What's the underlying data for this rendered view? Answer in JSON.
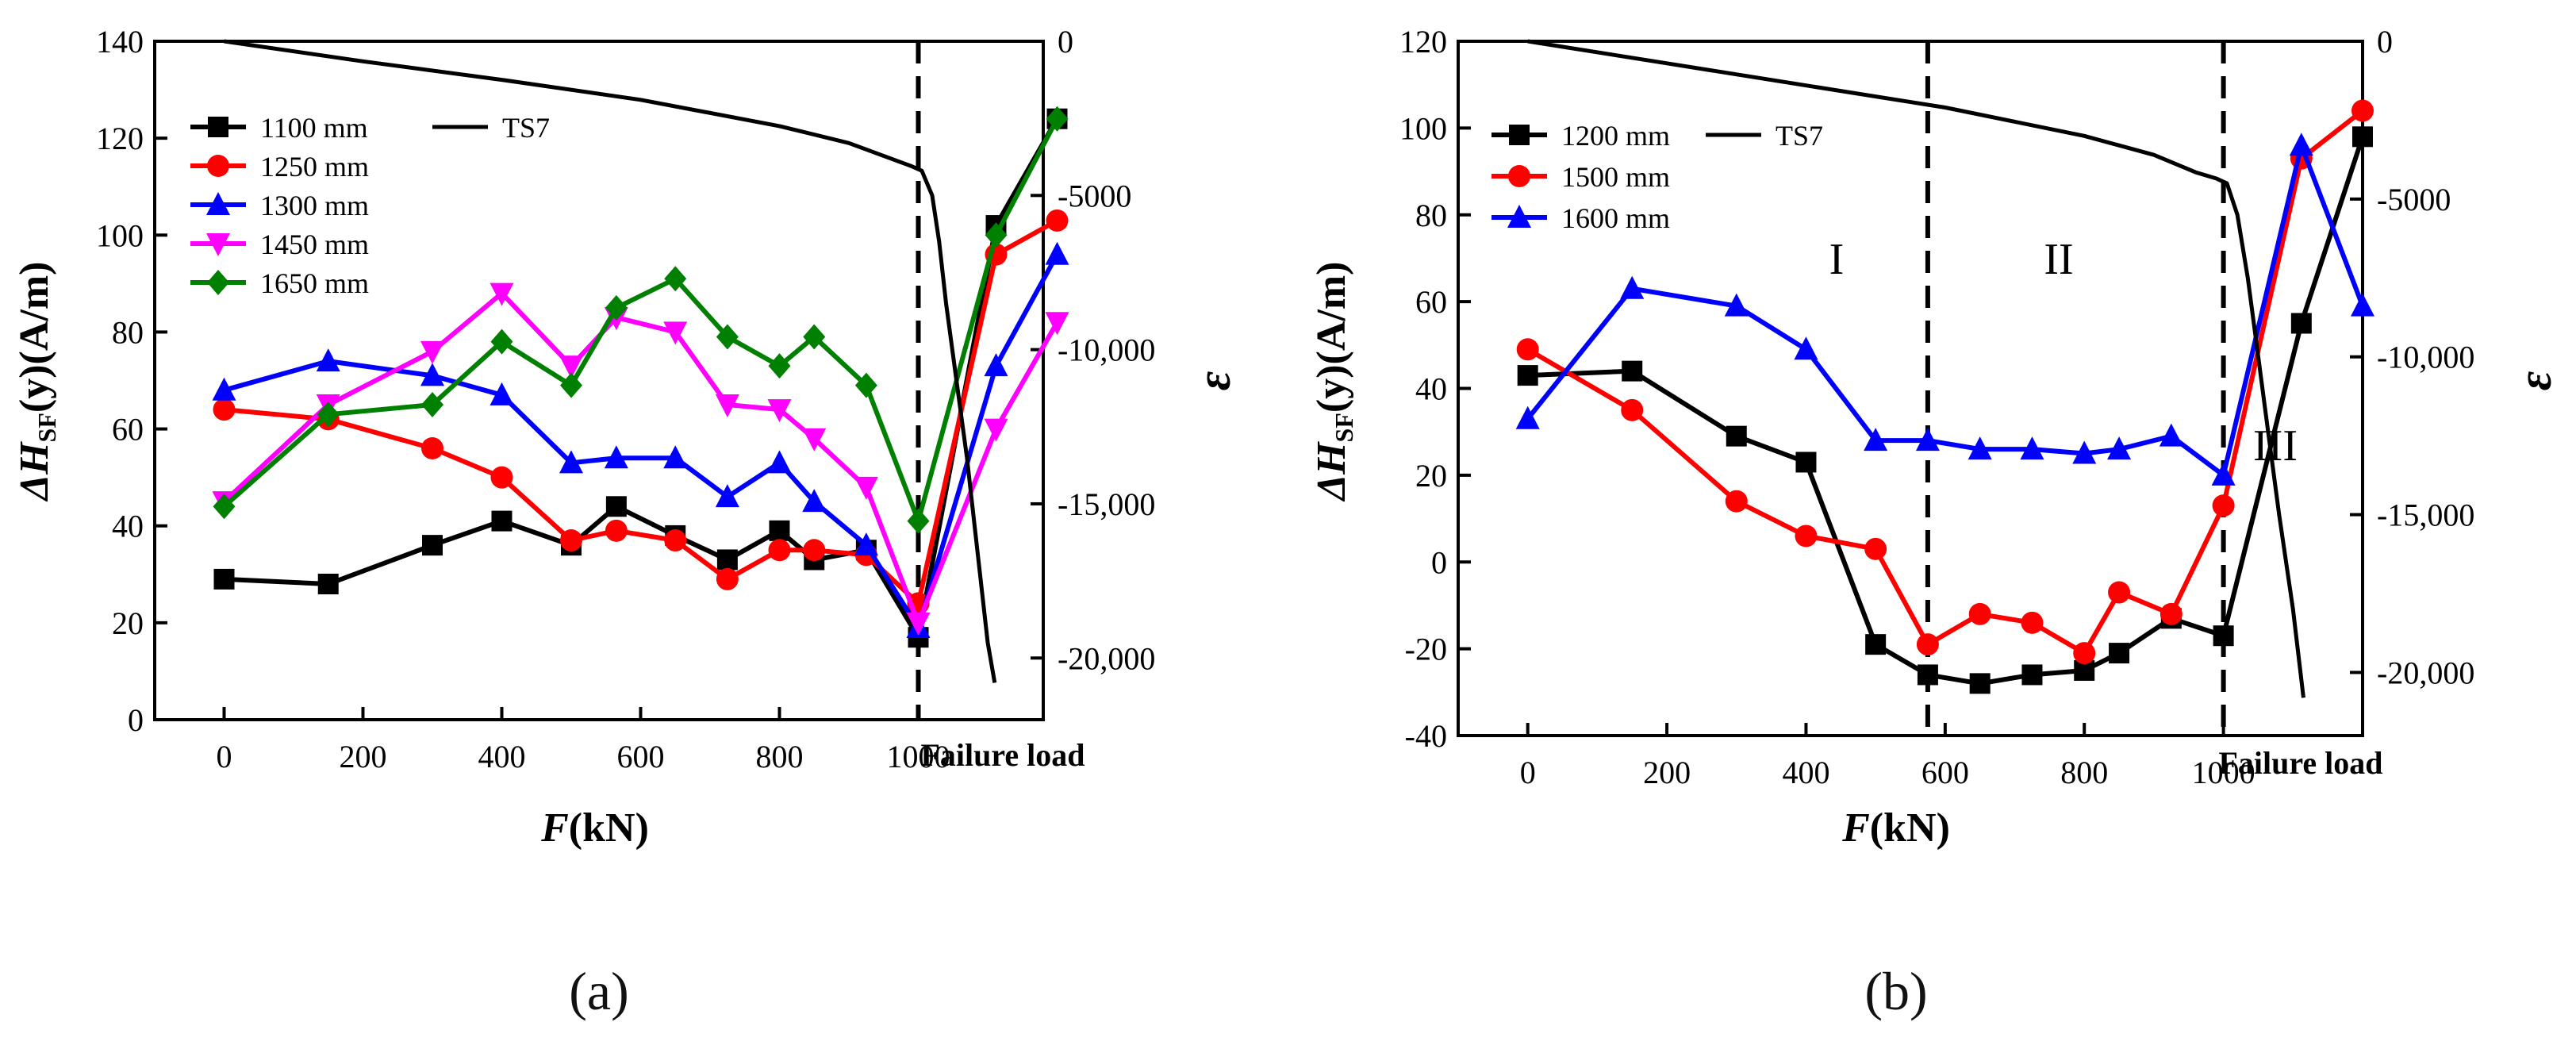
{
  "panel_a": {
    "label": "(a)",
    "y_left_label": "ΔH",
    "y_left_sub": "SF",
    "y_left_tail": "(y)(A/m)",
    "y_right_label": "ε",
    "x_label_italic": "F",
    "x_label_rest": "(kN)",
    "x_special_label": "Failure load",
    "left_ticks": [
      "0",
      "20",
      "40",
      "60",
      "80",
      "100",
      "120",
      "140"
    ],
    "right_ticks": [
      "0",
      "-5000",
      "-10,000",
      "-15,000",
      "-20,000"
    ],
    "x_ticks": [
      "0",
      "200",
      "400",
      "600",
      "800",
      "1000"
    ],
    "legend_left": [
      "1100 mm",
      "1250 mm",
      "1300 mm",
      "1450 mm",
      "1650 mm"
    ],
    "legend_right": [
      "TS7"
    ]
  },
  "panel_b": {
    "label": "(b)",
    "y_left_label": "ΔH",
    "y_left_sub": "SF",
    "y_left_tail": "(y)(A/m)",
    "y_right_label": "ε",
    "x_label_italic": "F",
    "x_label_rest": "(kN)",
    "x_special_label": "Failure load",
    "left_ticks": [
      "-40",
      "-20",
      "0",
      "20",
      "40",
      "60",
      "80",
      "100",
      "120"
    ],
    "right_ticks": [
      "0",
      "-5000",
      "-10,000",
      "-15,000",
      "-20,000"
    ],
    "x_ticks": [
      "0",
      "200",
      "400",
      "600",
      "800",
      "1000"
    ],
    "legend_left": [
      "1200 mm",
      "1500 mm",
      "1600 mm"
    ],
    "legend_right": [
      "TS7"
    ],
    "regions": [
      "I",
      "II",
      "III"
    ]
  },
  "chart_data": [
    {
      "type": "line",
      "panel": "a",
      "xlabel": "F(kN)",
      "ylabel": "ΔHSF(y)(A/m)",
      "y2label": "ε",
      "xlim": [
        -100,
        1180
      ],
      "ylim": [
        0,
        140
      ],
      "y2lim": [
        -22000,
        0
      ],
      "failure_load_x": 1200,
      "dashed_x": 1000,
      "series": [
        {
          "name": "1100 mm",
          "color": "#000000",
          "marker": "square",
          "x": [
            0,
            150,
            300,
            400,
            500,
            565,
            650,
            725,
            800,
            850,
            925,
            1000,
            1112,
            1200
          ],
          "values": [
            29,
            28,
            36,
            41,
            36,
            44,
            38,
            33,
            39,
            33,
            35,
            17,
            102,
            124
          ]
        },
        {
          "name": "1250 mm",
          "color": "#ff0000",
          "marker": "circle",
          "x": [
            0,
            150,
            300,
            400,
            500,
            565,
            650,
            725,
            800,
            850,
            925,
            1000,
            1112,
            1200
          ],
          "values": [
            64,
            62,
            56,
            50,
            37,
            39,
            37,
            29,
            35,
            35,
            34,
            24,
            96,
            103
          ]
        },
        {
          "name": "1300 mm",
          "color": "#0000ff",
          "marker": "triangle-up",
          "x": [
            0,
            150,
            300,
            400,
            500,
            565,
            650,
            725,
            800,
            850,
            925,
            1000,
            1112,
            1200
          ],
          "values": [
            68,
            74,
            71,
            67,
            53,
            54,
            54,
            46,
            53,
            45,
            36,
            19,
            73,
            96
          ]
        },
        {
          "name": "1450 mm",
          "color": "#ff00ff",
          "marker": "triangle-down",
          "x": [
            0,
            150,
            300,
            400,
            500,
            565,
            650,
            725,
            800,
            850,
            925,
            1000,
            1112,
            1200
          ],
          "values": [
            45,
            65,
            76,
            88,
            73,
            83,
            80,
            65,
            64,
            58,
            48,
            20,
            60,
            82
          ]
        },
        {
          "name": "1650 mm",
          "color": "#008000",
          "marker": "diamond",
          "x": [
            0,
            150,
            300,
            400,
            500,
            565,
            650,
            725,
            800,
            850,
            925,
            1000,
            1112,
            1200
          ],
          "values": [
            44,
            63,
            65,
            78,
            69,
            85,
            91,
            79,
            73,
            79,
            69,
            41,
            100,
            124
          ]
        },
        {
          "name": "TS7",
          "color": "#000000",
          "marker": "none",
          "axis": "right",
          "x": [
            0,
            200,
            400,
            600,
            800,
            900,
            960,
            990,
            1005,
            1020,
            1030,
            1040,
            1055,
            1070,
            1085,
            1100,
            1110
          ],
          "values": [
            0,
            -650,
            -1250,
            -1900,
            -2750,
            -3300,
            -3800,
            -4050,
            -4200,
            -5000,
            -6500,
            -8500,
            -11000,
            -13500,
            -16500,
            -19500,
            -20800
          ]
        }
      ]
    },
    {
      "type": "line",
      "panel": "b",
      "xlabel": "F(kN)",
      "ylabel": "ΔHSF(y)(A/m)",
      "y2label": "ε",
      "xlim": [
        -100,
        1200
      ],
      "ylim": [
        -40,
        120
      ],
      "y2lim": [
        -22000,
        0
      ],
      "failure_load_x": 1200,
      "dashed_x": [
        575,
        1000
      ],
      "series": [
        {
          "name": "1200 mm",
          "color": "#000000",
          "marker": "square",
          "x": [
            0,
            150,
            300,
            400,
            500,
            575,
            650,
            725,
            800,
            850,
            925,
            1000,
            1112,
            1200
          ],
          "values": [
            43,
            44,
            29,
            23,
            -19,
            -26,
            -28,
            -26,
            -25,
            -21,
            -13,
            -17,
            55,
            98
          ]
        },
        {
          "name": "1500 mm",
          "color": "#ff0000",
          "marker": "circle",
          "x": [
            0,
            150,
            300,
            400,
            500,
            575,
            650,
            725,
            800,
            850,
            925,
            1000,
            1112,
            1200
          ],
          "values": [
            49,
            35,
            14,
            6,
            3,
            -19,
            -12,
            -14,
            -21,
            -7,
            -12,
            13,
            93,
            104
          ]
        },
        {
          "name": "1600 mm",
          "color": "#0000ff",
          "marker": "triangle-up",
          "x": [
            0,
            150,
            300,
            400,
            500,
            575,
            650,
            725,
            800,
            850,
            925,
            1000,
            1112,
            1200
          ],
          "values": [
            33,
            63,
            59,
            49,
            28,
            28,
            26,
            26,
            25,
            26,
            29,
            20,
            96,
            59
          ]
        },
        {
          "name": "TS7",
          "color": "#000000",
          "marker": "none",
          "axis": "right",
          "x": [
            0,
            200,
            400,
            600,
            800,
            900,
            960,
            990,
            1005,
            1020,
            1035,
            1050,
            1065,
            1080,
            1100,
            1115
          ],
          "values": [
            0,
            -700,
            -1400,
            -2100,
            -3000,
            -3600,
            -4150,
            -4350,
            -4500,
            -5500,
            -7500,
            -10000,
            -12500,
            -15000,
            -18000,
            -20800
          ]
        }
      ]
    }
  ]
}
